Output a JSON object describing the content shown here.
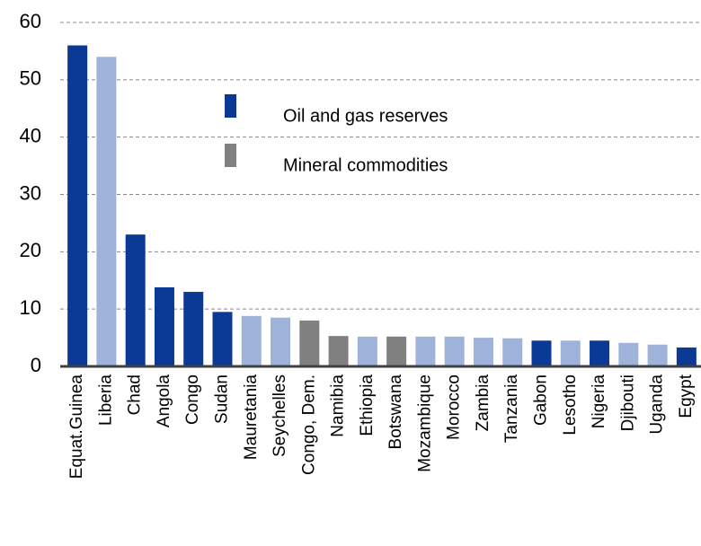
{
  "chart_data": {
    "type": "bar",
    "categories": [
      "Equat.Guinea",
      "Liberia",
      "Chad",
      "Angola",
      "Congo",
      "Sudan",
      "Mauretania",
      "Seychelles",
      "Congo, Dem.",
      "Namibia",
      "Ethiopia",
      "Botswana",
      "Mozambique",
      "Morocco",
      "Zambia",
      "Tanzania",
      "Gabon",
      "Lesotho",
      "Nigeria",
      "Djibouti",
      "Uganda",
      "Egypt"
    ],
    "values": [
      56,
      54,
      23,
      13.8,
      13,
      9.5,
      8.8,
      8.5,
      8,
      5.3,
      5.2,
      5.2,
      5.2,
      5.2,
      5,
      4.9,
      4.5,
      4.5,
      4.5,
      4.1,
      3.8,
      3.3
    ],
    "colors": [
      "#0a3a96",
      "#9eb2da",
      "#0a3a96",
      "#0a3a96",
      "#0a3a96",
      "#0a3a96",
      "#9eb2da",
      "#9eb2da",
      "#808080",
      "#808080",
      "#9eb2da",
      "#808080",
      "#9eb2da",
      "#9eb2da",
      "#9eb2da",
      "#9eb2da",
      "#0a3a96",
      "#9eb2da",
      "#0a3a96",
      "#9eb2da",
      "#9eb2da",
      "#0a3a96"
    ],
    "legend": [
      {
        "name": "Oil and gas reserves",
        "color": "#0a3a96"
      },
      {
        "name": "Mineral commodities",
        "color": "#808080"
      }
    ],
    "ylim": [
      0,
      60
    ],
    "yticks": [
      0,
      10,
      20,
      30,
      40,
      50,
      60
    ],
    "grid": true
  }
}
